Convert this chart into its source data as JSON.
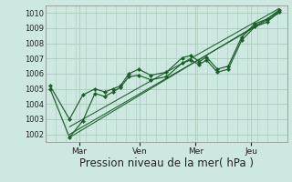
{
  "bg_color": "#cce8e0",
  "plot_bg_color": "#cce8e0",
  "grid_color": "#aaccbb",
  "line_color": "#1a5e28",
  "marker_color": "#1a5e28",
  "xlabel": "Pression niveau de la mer( hPa )",
  "xlabel_fontsize": 8.5,
  "yticks": [
    1002,
    1003,
    1004,
    1005,
    1006,
    1007,
    1008,
    1009,
    1010
  ],
  "ylim": [
    1001.5,
    1010.5
  ],
  "xlim": [
    0,
    1.0
  ],
  "xtick_labels": [
    "Mar",
    "Ven",
    "Mer",
    "Jeu"
  ],
  "xtick_positions": [
    0.14,
    0.39,
    0.62,
    0.85
  ],
  "series1_x": [
    0.02,
    0.1,
    0.155,
    0.205,
    0.245,
    0.28,
    0.31,
    0.345,
    0.385,
    0.435,
    0.5,
    0.565,
    0.6,
    0.635,
    0.665,
    0.71,
    0.755,
    0.81,
    0.865,
    0.915,
    0.965
  ],
  "series1_y": [
    1005.2,
    1003.0,
    1004.6,
    1005.0,
    1004.8,
    1005.0,
    1005.2,
    1006.0,
    1006.3,
    1005.9,
    1006.1,
    1007.05,
    1007.2,
    1006.8,
    1007.1,
    1006.3,
    1006.5,
    1008.4,
    1009.3,
    1009.6,
    1010.2
  ],
  "series2_x": [
    0.02,
    0.1,
    0.155,
    0.205,
    0.245,
    0.28,
    0.31,
    0.345,
    0.385,
    0.435,
    0.5,
    0.565,
    0.6,
    0.635,
    0.665,
    0.71,
    0.755,
    0.81,
    0.865,
    0.915,
    0.965
  ],
  "series2_y": [
    1005.0,
    1001.8,
    1002.9,
    1004.7,
    1004.5,
    1004.8,
    1005.1,
    1005.8,
    1005.9,
    1005.6,
    1005.8,
    1006.7,
    1006.9,
    1006.6,
    1006.9,
    1006.1,
    1006.3,
    1008.2,
    1009.1,
    1009.4,
    1010.1
  ],
  "trend1_x": [
    0.1,
    0.965
  ],
  "trend1_y": [
    1002.0,
    1010.0
  ],
  "trend2_x": [
    0.1,
    0.965
  ],
  "trend2_y": [
    1001.8,
    1010.1
  ],
  "trend3_x": [
    0.1,
    0.965
  ],
  "trend3_y": [
    1002.5,
    1010.3
  ],
  "minor_xticks": [
    0.0,
    0.055,
    0.1,
    0.145,
    0.195,
    0.24,
    0.28,
    0.315,
    0.35,
    0.39,
    0.435,
    0.48,
    0.525,
    0.565,
    0.6,
    0.635,
    0.665,
    0.705,
    0.745,
    0.785,
    0.825,
    0.865,
    0.905,
    0.945,
    0.985
  ]
}
